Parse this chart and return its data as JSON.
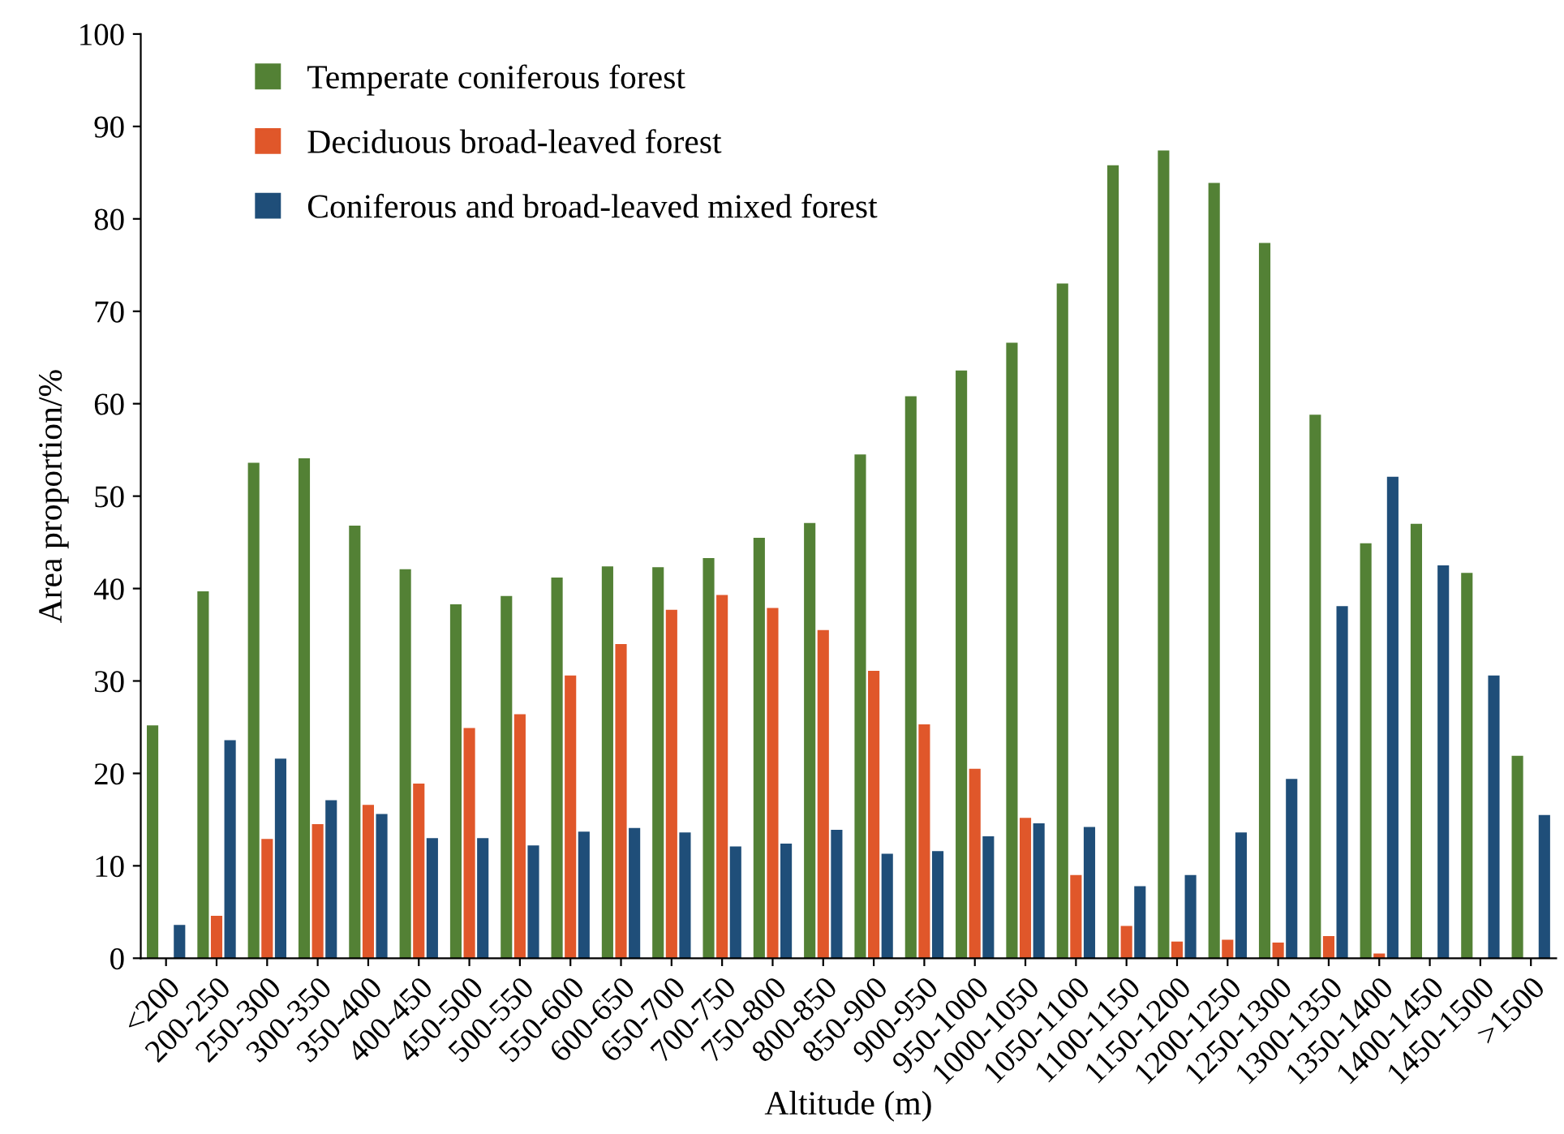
{
  "chart_data": {
    "type": "bar",
    "xlabel": "Altitude (m)",
    "ylabel": "Area proportion/%",
    "categories": [
      "<200",
      "200-250",
      "250-300",
      "300-350",
      "350-400",
      "400-450",
      "450-500",
      "500-550",
      "550-600",
      "600-650",
      "650-700",
      "700-750",
      "750-800",
      "800-850",
      "850-900",
      "900-950",
      "950-1000",
      "1000-1050",
      "1050-1100",
      "1100-1150",
      "1150-1200",
      "1200-1250",
      "1250-1300",
      "1300-1350",
      "1350-1400",
      "1400-1450",
      "1450-1500",
      ">1500"
    ],
    "series": [
      {
        "name": "Temperate coniferous forest",
        "color": "#538135",
        "values": [
          25.2,
          39.7,
          53.6,
          54.1,
          46.8,
          42.1,
          38.3,
          39.2,
          41.2,
          42.4,
          42.3,
          43.3,
          45.5,
          47.1,
          54.5,
          60.8,
          63.6,
          66.6,
          73.0,
          85.8,
          87.4,
          83.9,
          77.4,
          58.8,
          44.9,
          47.0,
          41.7,
          21.9
        ]
      },
      {
        "name": "Deciduous broad-leaved forest",
        "color": "#e0572a",
        "values": [
          0,
          4.6,
          12.9,
          14.5,
          16.6,
          18.9,
          24.9,
          26.4,
          30.6,
          34.0,
          37.7,
          39.3,
          37.9,
          35.5,
          31.1,
          25.3,
          20.5,
          15.2,
          9.0,
          3.5,
          1.8,
          2.0,
          1.7,
          2.4,
          0.5,
          0,
          0,
          0
        ]
      },
      {
        "name": "Coniferous and broad-leaved mixed forest",
        "color": "#1f4e79",
        "values": [
          3.6,
          23.6,
          21.6,
          17.1,
          15.6,
          13.0,
          13.0,
          12.2,
          13.7,
          14.1,
          13.6,
          12.1,
          12.4,
          13.9,
          11.3,
          11.6,
          13.2,
          14.6,
          14.2,
          7.8,
          9.0,
          13.6,
          19.4,
          38.1,
          52.1,
          42.5,
          30.6,
          15.5
        ]
      }
    ],
    "ylim": [
      0,
      100
    ],
    "yticks": [
      0,
      10,
      20,
      30,
      40,
      50,
      60,
      70,
      80,
      90,
      100
    ],
    "grid": false,
    "legend": "top left"
  }
}
